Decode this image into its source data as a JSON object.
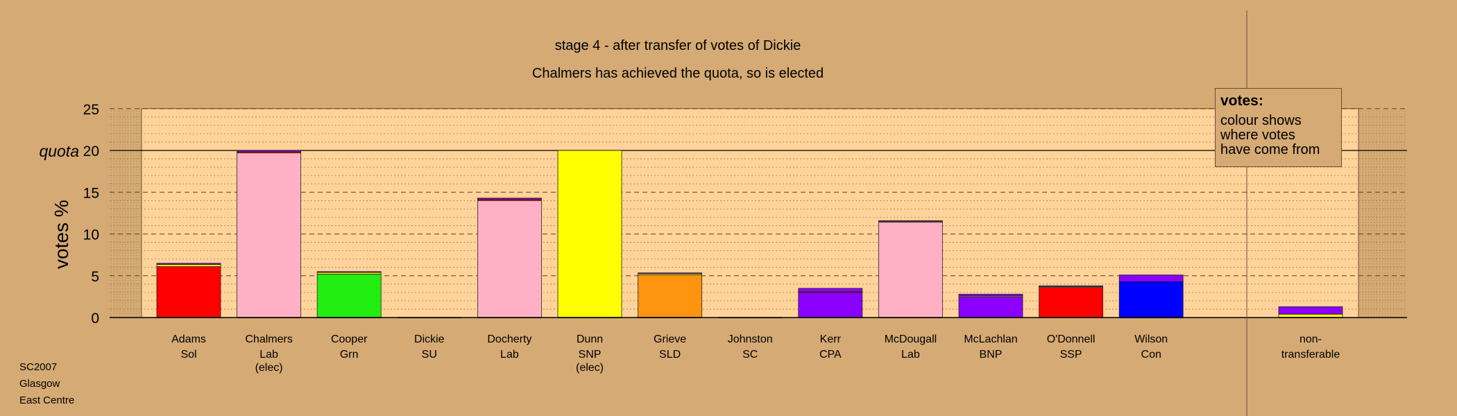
{
  "chart_data": {
    "type": "bar",
    "stacked": true,
    "title": "stage 4 - after transfer of votes of Dickie",
    "subtitle": "Chalmers has achieved the quota, so is elected",
    "ylabel": "votes %",
    "ylim": [
      0,
      25
    ],
    "yticks": [
      "0",
      "5",
      "10",
      "15",
      "20",
      "25"
    ],
    "quota": {
      "label": "quota",
      "value": 20
    },
    "grid": true,
    "categories": [
      {
        "name": "Adams",
        "party": "Sol",
        "note": ""
      },
      {
        "name": "Chalmers",
        "party": "Lab",
        "note": "(elec)"
      },
      {
        "name": "Cooper",
        "party": "Grn",
        "note": ""
      },
      {
        "name": "Dickie",
        "party": "SU",
        "note": ""
      },
      {
        "name": "Docherty",
        "party": "Lab",
        "note": ""
      },
      {
        "name": "Dunn",
        "party": "SNP",
        "note": "(elec)"
      },
      {
        "name": "Grieve",
        "party": "SLD",
        "note": ""
      },
      {
        "name": "Johnston",
        "party": "SC",
        "note": ""
      },
      {
        "name": "Kerr",
        "party": "CPA",
        "note": ""
      },
      {
        "name": "McDougall",
        "party": "Lab",
        "note": ""
      },
      {
        "name": "McLachlan",
        "party": "BNP",
        "note": ""
      },
      {
        "name": "O'Donnell",
        "party": "SSP",
        "note": ""
      },
      {
        "name": "Wilson",
        "party": "Con",
        "note": ""
      }
    ],
    "nontransferable": {
      "label_line1": "non-",
      "label_line2": "transferable",
      "segments": [
        {
          "color": "#ffff00",
          "value": 0.4
        },
        {
          "color": "#8b00ff",
          "value": 0.9
        }
      ]
    },
    "bars": [
      [
        {
          "color": "#ff0000",
          "value": 6.1
        },
        {
          "color": "#ffff00",
          "value": 0.25
        },
        {
          "color": "#8b00ff",
          "value": 0.15
        }
      ],
      [
        {
          "color": "#ffb0c4",
          "value": 19.7
        },
        {
          "color": "#ff0000",
          "value": 0.15
        },
        {
          "color": "#8b00ff",
          "value": 0.15
        }
      ],
      [
        {
          "color": "#22ee11",
          "value": 5.2
        },
        {
          "color": "#ffff00",
          "value": 0.2
        },
        {
          "color": "#8b00ff",
          "value": 0.1
        }
      ],
      [],
      [
        {
          "color": "#ffb0c4",
          "value": 14.0
        },
        {
          "color": "#ff0000",
          "value": 0.15
        },
        {
          "color": "#8b00ff",
          "value": 0.15
        }
      ],
      [
        {
          "color": "#ffff00",
          "value": 20.0
        }
      ],
      [
        {
          "color": "#ff9410",
          "value": 5.1
        },
        {
          "color": "#ffff00",
          "value": 0.15
        },
        {
          "color": "#8b00ff",
          "value": 0.1
        }
      ],
      [],
      [
        {
          "color": "#8b00ff",
          "value": 3.0
        },
        {
          "color": "#ff0000",
          "value": 0.1
        },
        {
          "color": "#8b00ff",
          "value": 0.4
        }
      ],
      [
        {
          "color": "#ffb0c4",
          "value": 11.4
        },
        {
          "color": "#ffff00",
          "value": 0.1
        },
        {
          "color": "#8b00ff",
          "value": 0.1
        }
      ],
      [
        {
          "color": "#8b00ff",
          "value": 2.5
        },
        {
          "color": "#ffff00",
          "value": 0.1
        },
        {
          "color": "#8b00ff",
          "value": 0.2
        }
      ],
      [
        {
          "color": "#ff0000",
          "value": 3.6
        },
        {
          "color": "#ffff00",
          "value": 0.1
        },
        {
          "color": "#8b00ff",
          "value": 0.1
        }
      ],
      [
        {
          "color": "#0000ff",
          "value": 4.3
        },
        {
          "color": "#8b00ff",
          "value": 0.8
        }
      ]
    ],
    "colors": {
      "background": "#d5aa74",
      "plot_area": "#ffd399",
      "side_shade": "#d5aa74"
    }
  },
  "legend": {
    "title": "votes:",
    "lines": [
      "colour shows",
      "where votes",
      "have come from"
    ]
  },
  "footnote": {
    "line1": "SC2007",
    "line2": "Glasgow",
    "line3": "East Centre"
  }
}
